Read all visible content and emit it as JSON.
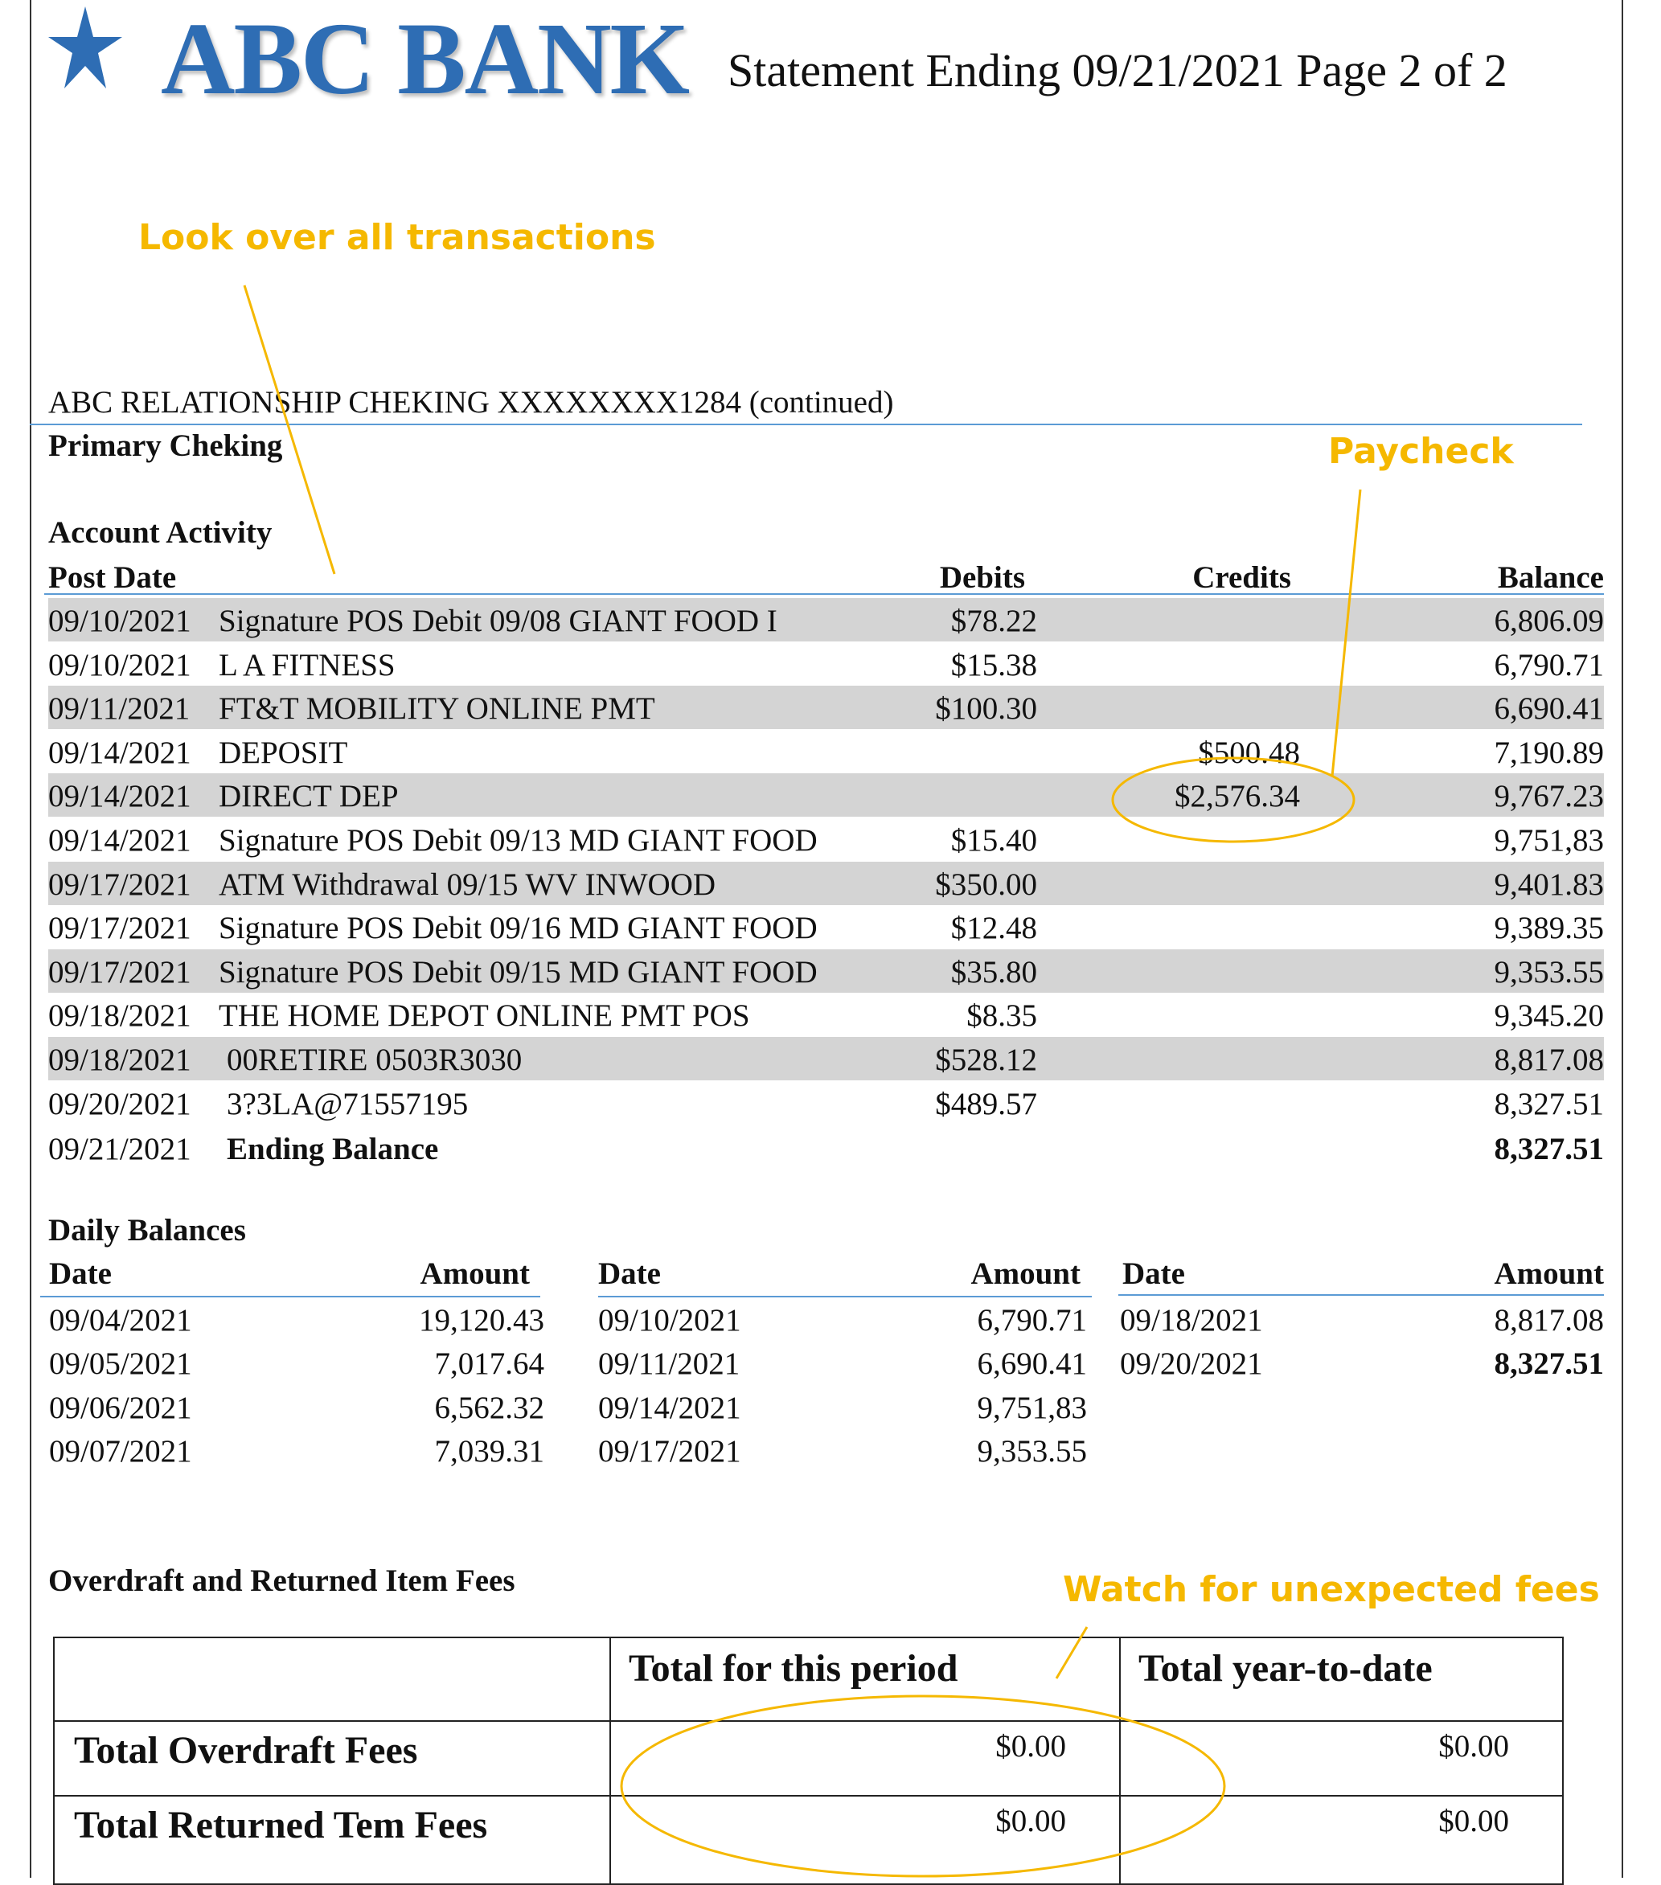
{
  "header": {
    "bank_name": "ABC BANK",
    "logo_icon": "star-icon",
    "brand_color": "#2e6db4",
    "statement_title": "Statement Ending 09/21/2021 Page 2 of 2"
  },
  "annotations": {
    "color": "#f5b800",
    "transactions_note": "Look over all transactions",
    "paycheck_note": "Paycheck",
    "fees_note": "Watch for unexpected fees"
  },
  "account": {
    "title": "ABC RELATIONSHIP CHEKING XXXXXXXX1284 (continued)",
    "subtitle": "Primary Cheking",
    "activity_title": "Account Activity"
  },
  "activity": {
    "columns": {
      "post_date": "Post Date",
      "debits": "Debits",
      "credits": "Credits",
      "balance": "Balance"
    },
    "rows": [
      {
        "date": "09/10/2021",
        "desc": "Signature POS Debit 09/08 GIANT FOOD I",
        "debit": "$78.22",
        "credit": "",
        "balance": "6,806.09"
      },
      {
        "date": "09/10/2021",
        "desc": "L A FITNESS",
        "debit": "$15.38",
        "credit": "",
        "balance": "6,790.71"
      },
      {
        "date": "09/11/2021",
        "desc": "FT&T MOBILITY ONLINE PMT",
        "debit": "$100.30",
        "credit": "",
        "balance": "6,690.41"
      },
      {
        "date": "09/14/2021",
        "desc": "DEPOSIT",
        "debit": "",
        "credit": "$500.48",
        "balance": "7,190.89"
      },
      {
        "date": "09/14/2021",
        "desc": "DIRECT DEP",
        "debit": "",
        "credit": "$2,576.34",
        "balance": "9,767.23"
      },
      {
        "date": "09/14/2021",
        "desc": "Signature POS Debit 09/13 MD GIANT FOOD",
        "debit": "$15.40",
        "credit": "",
        "balance": "9,751,83"
      },
      {
        "date": "09/17/2021",
        "desc": "ATM Withdrawal  09/15 WV INWOOD",
        "debit": "$350.00",
        "credit": "",
        "balance": "9,401.83"
      },
      {
        "date": "09/17/2021",
        "desc": "Signature POS Debit 09/16 MD GIANT FOOD",
        "debit": "$12.48",
        "credit": "",
        "balance": "9,389.35"
      },
      {
        "date": "09/17/2021",
        "desc": "Signature POS Debit 09/15 MD GIANT FOOD",
        "debit": "$35.80",
        "credit": "",
        "balance": "9,353.55"
      },
      {
        "date": "09/18/2021",
        "desc": "THE HOME DEPOT ONLINE PMT POS",
        "debit": "$8.35",
        "credit": "",
        "balance": "9,345.20"
      },
      {
        "date": "09/18/2021",
        "desc": "00RETIRE 0503R3030",
        "debit": "$528.12",
        "credit": "",
        "balance": "8,817.08"
      },
      {
        "date": "09/20/2021",
        "desc": "3?3LA@71557195",
        "debit": "$489.57",
        "credit": "",
        "balance": "8,327.51"
      }
    ],
    "ending": {
      "date": "09/21/2021",
      "label": "Ending Balance",
      "balance": "8,327.51"
    }
  },
  "daily_balances": {
    "title": "Daily Balances",
    "date_header": "Date",
    "amount_header": "Amount",
    "col1": [
      {
        "date": "09/04/2021",
        "amount": "19,120.43"
      },
      {
        "date": "09/05/2021",
        "amount": "7,017.64"
      },
      {
        "date": "09/06/2021",
        "amount": "6,562.32"
      },
      {
        "date": "09/07/2021",
        "amount": "7,039.31"
      }
    ],
    "col2": [
      {
        "date": "09/10/2021",
        "amount": "6,790.71"
      },
      {
        "date": "09/11/2021",
        "amount": "6,690.41"
      },
      {
        "date": "09/14/2021",
        "amount": "9,751,83"
      },
      {
        "date": "09/17/2021",
        "amount": "9,353.55"
      }
    ],
    "col3": [
      {
        "date": "09/18/2021",
        "amount": "8,817.08"
      },
      {
        "date": "09/20/2021",
        "amount": "8,327.51"
      }
    ]
  },
  "fees": {
    "title": "Overdraft and Returned Item Fees",
    "head_period": "Total for this period",
    "head_ytd": "Total year-to-date",
    "rows": [
      {
        "label": "Total Overdraft Fees",
        "period": "$0.00",
        "ytd": "$0.00"
      },
      {
        "label": "Total Returned Tem Fees",
        "period": "$0.00",
        "ytd": "$0.00"
      }
    ]
  }
}
